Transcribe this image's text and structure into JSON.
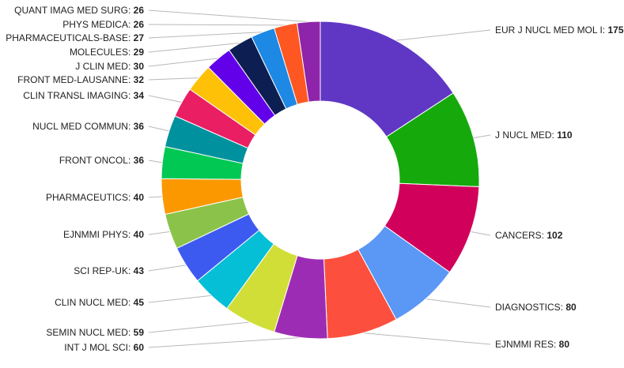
{
  "chart_data": {
    "type": "pie",
    "subtype": "donut",
    "title": "",
    "legend": "none",
    "value_suffix": "",
    "slices": [
      {
        "label": "EUR J NUCL MED MOL I",
        "value": 175,
        "color": "#5f37c4"
      },
      {
        "label": "J NUCL MED",
        "value": 110,
        "color": "#16a90c"
      },
      {
        "label": "CANCERS",
        "value": 102,
        "color": "#d1005a"
      },
      {
        "label": "DIAGNOSTICS",
        "value": 80,
        "color": "#5b97f4"
      },
      {
        "label": "EJNMMI RES",
        "value": 80,
        "color": "#fd4f3d"
      },
      {
        "label": "INT J MOL SCI",
        "value": 60,
        "color": "#9d2cb5"
      },
      {
        "label": "SEMIN NUCL MED",
        "value": 59,
        "color": "#d2de38"
      },
      {
        "label": "CLIN NUCL MED",
        "value": 45,
        "color": "#04bfd6"
      },
      {
        "label": "SCI REP-UK",
        "value": 43,
        "color": "#3d5af0"
      },
      {
        "label": "EJNMMI PHYS",
        "value": 40,
        "color": "#8bc34a"
      },
      {
        "label": "PHARMACEUTICS",
        "value": 40,
        "color": "#fb9800"
      },
      {
        "label": "FRONT ONCOL",
        "value": 36,
        "color": "#00c853"
      },
      {
        "label": "NUCL MED COMMUN",
        "value": 36,
        "color": "#00919e"
      },
      {
        "label": "CLIN TRANSL IMAGING",
        "value": 34,
        "color": "#e91e63"
      },
      {
        "label": "FRONT MED-LAUSANNE",
        "value": 32,
        "color": "#ffc107"
      },
      {
        "label": "J CLIN MED",
        "value": 30,
        "color": "#6200ea"
      },
      {
        "label": "MOLECULES",
        "value": 29,
        "color": "#0d1f52"
      },
      {
        "label": "PHARMACEUTICALS-BASE",
        "value": 27,
        "color": "#1e88e5"
      },
      {
        "label": "PHYS MEDICA",
        "value": 26,
        "color": "#ff5722"
      },
      {
        "label": "QUANT IMAG MED SURG",
        "value": 26,
        "color": "#8e24aa"
      }
    ]
  }
}
